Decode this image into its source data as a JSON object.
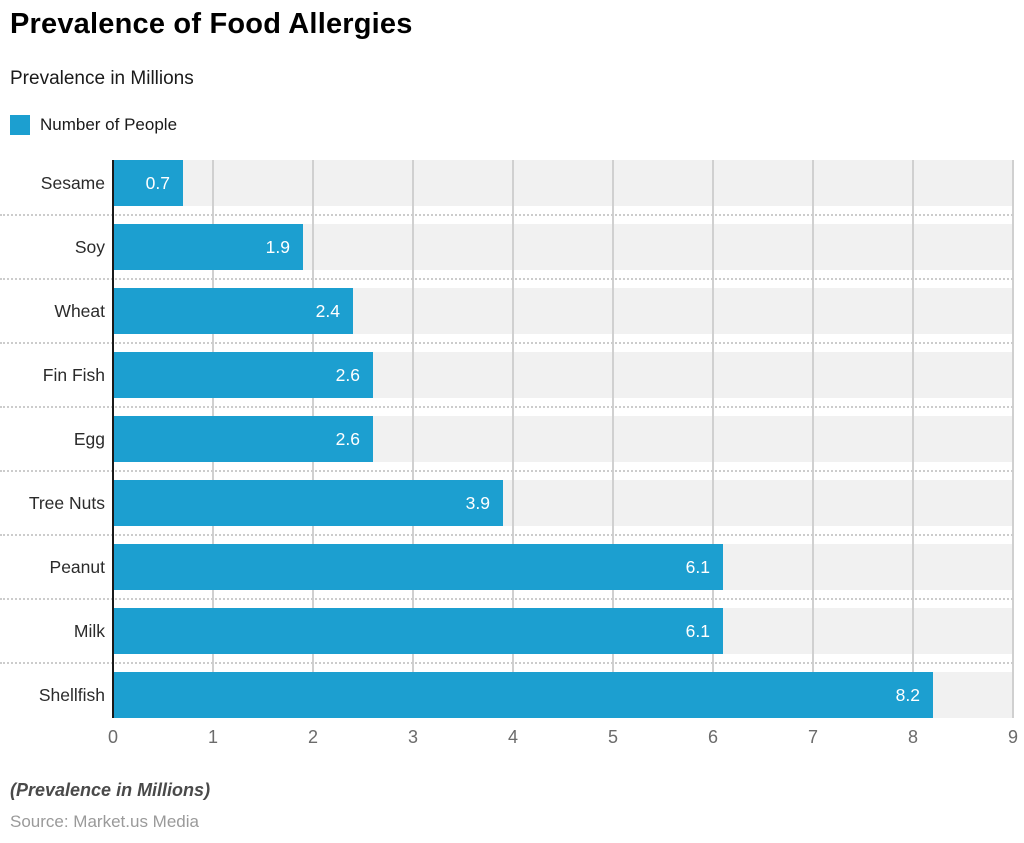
{
  "header": {
    "title": "Prevalence of Food Allergies",
    "subtitle": "Prevalence in Millions",
    "legend": {
      "items": [
        {
          "label": "Number of People",
          "color": "#1c9fd0"
        }
      ]
    }
  },
  "chart_data": {
    "type": "bar",
    "orientation": "horizontal",
    "title": "Prevalence of Food Allergies",
    "subtitle": "Prevalence in Millions",
    "series_name": "Number of People",
    "categories": [
      "Sesame",
      "Soy",
      "Wheat",
      "Fin Fish",
      "Egg",
      "Tree Nuts",
      "Peanut",
      "Milk",
      "Shellfish"
    ],
    "values": [
      0.7,
      1.9,
      2.4,
      2.6,
      2.6,
      3.9,
      6.1,
      6.1,
      8.2
    ],
    "xlabel": "",
    "ylabel": "",
    "xlim": [
      0,
      9
    ],
    "x_ticks": [
      0,
      1,
      2,
      3,
      4,
      5,
      6,
      7,
      8,
      9
    ],
    "grid": true,
    "legend_position": "top-left",
    "colors": {
      "bar": "#1c9fd0",
      "row_band": "#f1f1f1",
      "gridline": "#d0d0d0",
      "axis": "#1a1a1a",
      "value_label": "#ffffff"
    }
  },
  "footer": {
    "note": "(Prevalence in Millions)",
    "source": "Source: Market.us Media"
  }
}
